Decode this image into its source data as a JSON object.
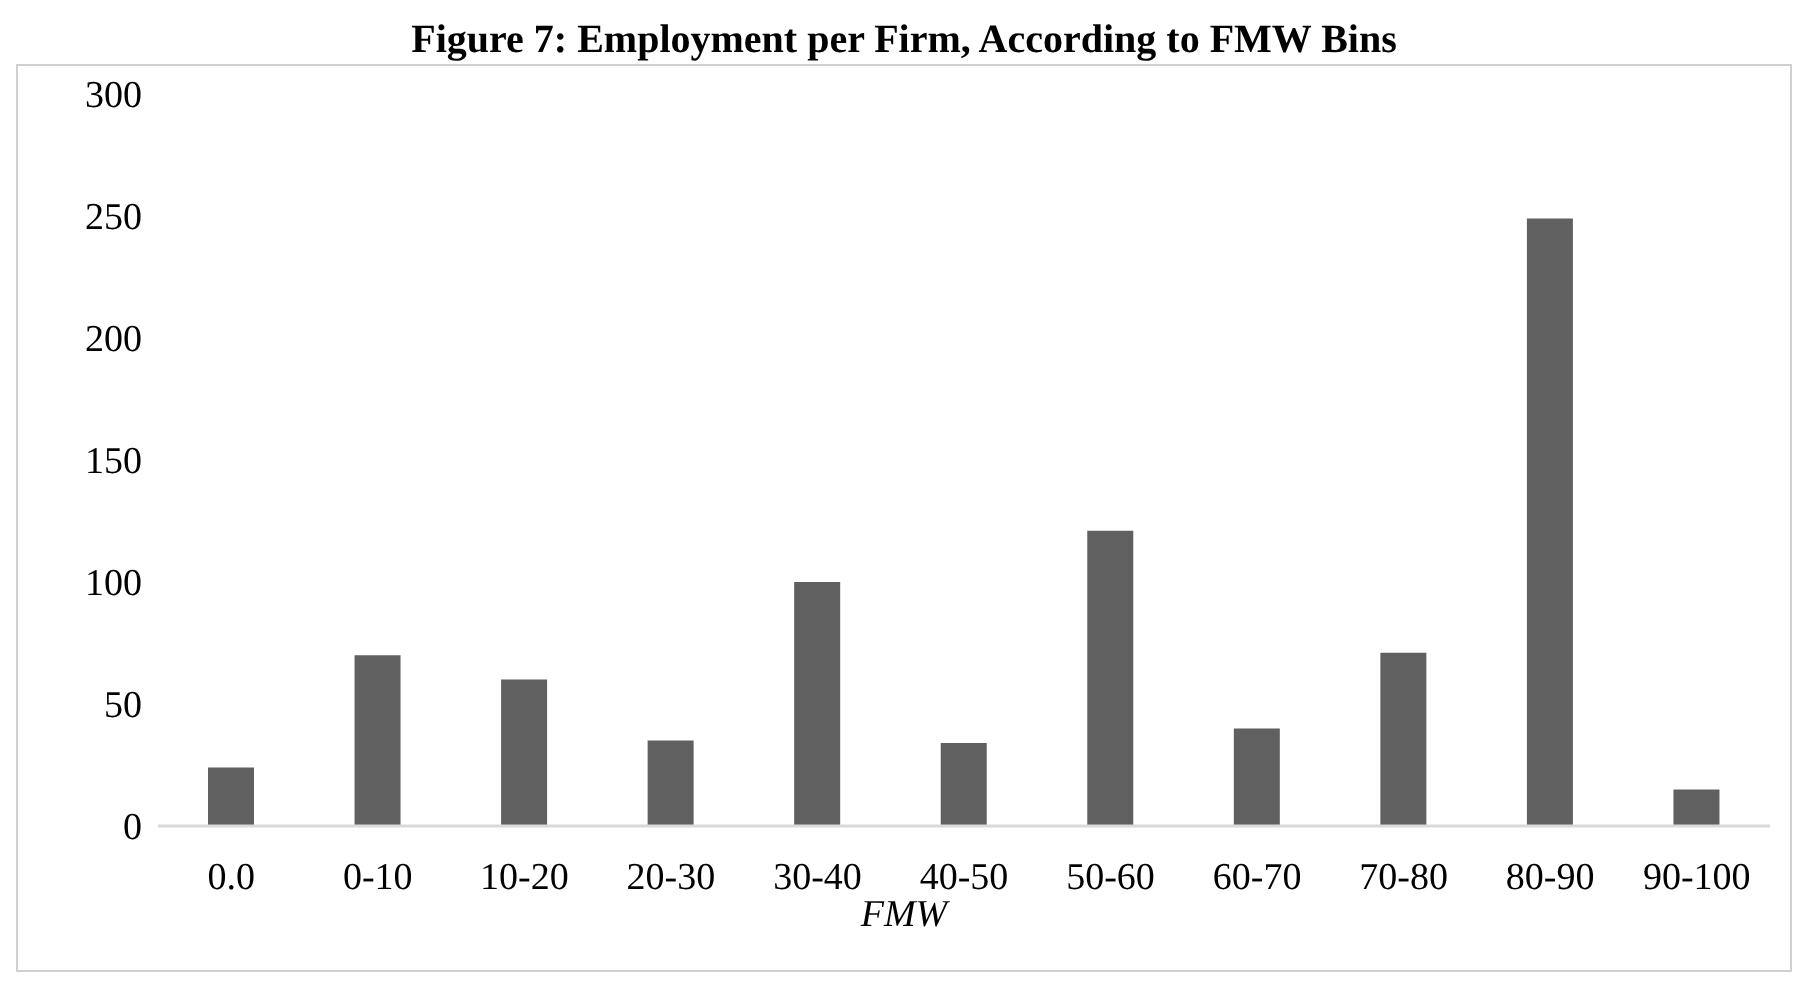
{
  "chart_data": {
    "type": "bar",
    "title": "Figure 7: Employment per Firm, According to FMW Bins",
    "xlabel": "FMW",
    "categories": [
      "0.0",
      "0-10",
      "10-20",
      "20-30",
      "30-40",
      "40-50",
      "50-60",
      "60-70",
      "70-80",
      "80-90",
      "90-100"
    ],
    "values": [
      24,
      70,
      60,
      35,
      100,
      34,
      121,
      40,
      71,
      249,
      15
    ],
    "color": "#606060",
    "ylim": [
      0,
      300
    ],
    "yticks": [
      0,
      50,
      100,
      150,
      200,
      250,
      300
    ],
    "grid": false
  }
}
